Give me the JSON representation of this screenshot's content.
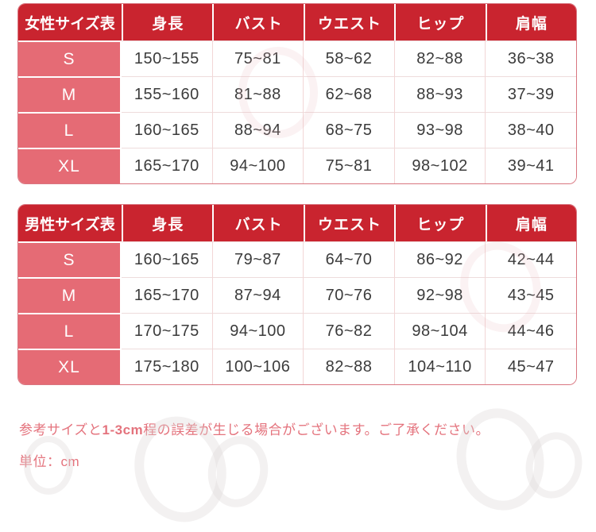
{
  "colors": {
    "header_red": "#c9242f",
    "label_pink": "#e56b75",
    "border_pink": "#d97680",
    "note_pink": "#e4737d",
    "data_text": "#3b3b3b"
  },
  "tables": [
    {
      "title": "女性サイズ表",
      "columns": [
        "身長",
        "バスト",
        "ウエスト",
        "ヒップ",
        "肩幅"
      ],
      "rows": [
        {
          "size": "S",
          "values": [
            "150~155",
            "75~81",
            "58~62",
            "82~88",
            "36~38"
          ]
        },
        {
          "size": "M",
          "values": [
            "155~160",
            "81~88",
            "62~68",
            "88~93",
            "37~39"
          ]
        },
        {
          "size": "L",
          "values": [
            "160~165",
            "88~94",
            "68~75",
            "93~98",
            "38~40"
          ]
        },
        {
          "size": "XL",
          "values": [
            "165~170",
            "94~100",
            "75~81",
            "98~102",
            "39~41"
          ]
        }
      ]
    },
    {
      "title": "男性サイズ表",
      "columns": [
        "身長",
        "バスト",
        "ウエスト",
        "ヒップ",
        "肩幅"
      ],
      "rows": [
        {
          "size": "S",
          "values": [
            "160~165",
            "79~87",
            "64~70",
            "86~92",
            "42~44"
          ]
        },
        {
          "size": "M",
          "values": [
            "165~170",
            "87~94",
            "70~76",
            "92~98",
            "43~45"
          ]
        },
        {
          "size": "L",
          "values": [
            "170~175",
            "94~100",
            "76~82",
            "98~104",
            "44~46"
          ]
        },
        {
          "size": "XL",
          "values": [
            "175~180",
            "100~106",
            "82~88",
            "104~110",
            "45~47"
          ]
        }
      ]
    }
  ],
  "notes": {
    "disclaimer_prefix": "参考サイズと",
    "disclaimer_em": "1-3cm",
    "disclaimer_suffix": "程の誤差が生じる場合がございます。ご了承ください。",
    "unit": "単位：cm"
  }
}
